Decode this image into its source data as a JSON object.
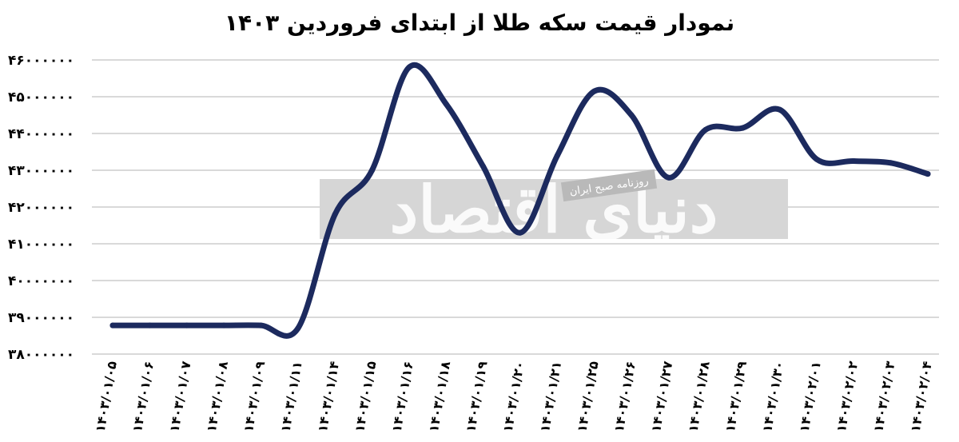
{
  "chart_data": {
    "type": "line",
    "title": "نمودار قیمت سکه طلا از ابتدای فروردین ۱۴۰۳",
    "xlabel": "",
    "ylabel": "",
    "ylim": [
      38000000,
      46000000
    ],
    "y_ticks": [
      38000000,
      39000000,
      40000000,
      41000000,
      42000000,
      43000000,
      44000000,
      45000000,
      46000000
    ],
    "y_tick_labels": [
      "۳۸۰۰۰۰۰۰",
      "۳۹۰۰۰۰۰۰",
      "۴۰۰۰۰۰۰۰",
      "۴۱۰۰۰۰۰۰",
      "۴۲۰۰۰۰۰۰",
      "۴۳۰۰۰۰۰۰",
      "۴۴۰۰۰۰۰۰",
      "۴۵۰۰۰۰۰۰",
      "۴۶۰۰۰۰۰۰"
    ],
    "categories": [
      "۱۴۰۳/۰۱/۰۵",
      "۱۴۰۳/۰۱/۰۶",
      "۱۴۰۳/۰۱/۰۷",
      "۱۴۰۳/۰۱/۰۸",
      "۱۴۰۳/۰۱/۰۹",
      "۱۴۰۳/۰۱/۱۱",
      "۱۴۰۳/۰۱/۱۴",
      "۱۴۰۳/۰۱/۱۵",
      "۱۴۰۳/۰۱/۱۶",
      "۱۴۰۳/۰۱/۱۸",
      "۱۴۰۳/۰۱/۱۹",
      "۱۴۰۳/۰۱/۲۰",
      "۱۴۰۳/۰۱/۲۱",
      "۱۴۰۳/۰۱/۲۵",
      "۱۴۰۳/۰۱/۲۶",
      "۱۴۰۳/۰۱/۲۷",
      "۱۴۰۳/۰۱/۲۸",
      "۱۴۰۳/۰۱/۲۹",
      "۱۴۰۳/۰۱/۳۰",
      "۱۴۰۳/۰۲/۰۱",
      "۱۴۰۳/۰۲/۰۲",
      "۱۴۰۳/۰۲/۰۳",
      "۱۴۰۳/۰۲/۰۴"
    ],
    "series": [
      {
        "values": [
          38780000,
          38780000,
          38780000,
          38780000,
          38780000,
          38700000,
          41800000,
          43000000,
          45800000,
          44800000,
          43100000,
          41300000,
          43400000,
          45150000,
          44500000,
          42800000,
          44100000,
          44150000,
          44650000,
          43300000,
          43250000,
          43200000,
          42900000
        ],
        "color": "#1c2a5e"
      }
    ],
    "grid": true,
    "legend": "none",
    "colors": {
      "line": "#1c2a5e",
      "grid": "#d9d9d9",
      "watermark_box": "#d6d6d6"
    }
  },
  "watermark": {
    "brand": "دنیای اقتصاد",
    "subtitle": "روزنامه صبح ایران"
  }
}
